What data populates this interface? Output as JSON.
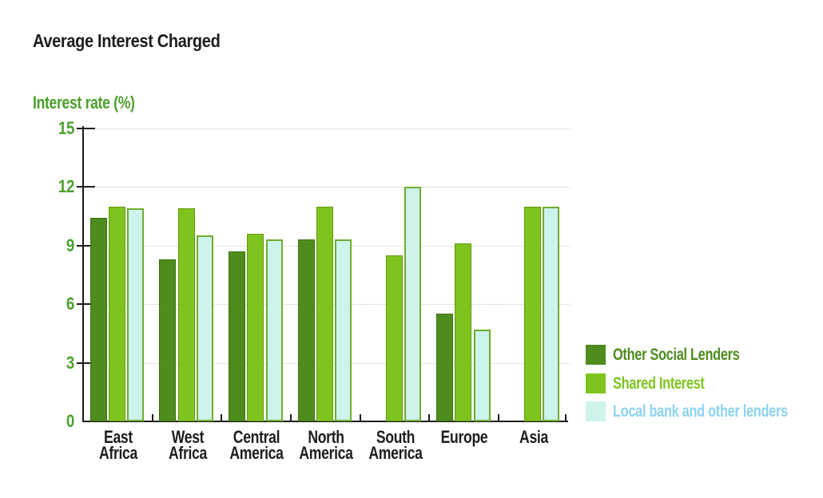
{
  "chart_data": {
    "type": "bar",
    "title": "Average Interest Charged",
    "ylabel": "Interest rate (%)",
    "categories": [
      "East Africa",
      "West Africa",
      "Central America",
      "North America",
      "South America",
      "Europe",
      "Asia"
    ],
    "series": [
      {
        "name": "Other Social Lenders",
        "color": "#4E8C1E",
        "border": "#3E6F15",
        "values": [
          10.4,
          8.3,
          8.7,
          9.3,
          null,
          5.5,
          null
        ]
      },
      {
        "name": "Shared Interest",
        "color": "#7FC41E",
        "border": "#62990F",
        "values": [
          11.0,
          10.9,
          9.6,
          11.0,
          8.5,
          9.1,
          11.0
        ]
      },
      {
        "name": "Local bank and other lenders",
        "color": "#CDF3EC",
        "border": "#6FAC2C",
        "values": [
          10.9,
          9.5,
          9.3,
          9.3,
          12.0,
          4.7,
          11.0
        ]
      }
    ],
    "yticks": [
      0,
      3,
      6,
      9,
      12,
      15
    ],
    "ylim": [
      0,
      15
    ],
    "grid": "horizontal-dotted",
    "legend_position": "bottom-right"
  },
  "colors": {
    "title_text": "#1D1D1B",
    "axis_text_green": "#4BA02C",
    "axis_line": "#1D1D1B",
    "gridline": "#C9C9C9",
    "legend_blue_text": "#8CD3F1",
    "background": "#FFFFFF"
  }
}
